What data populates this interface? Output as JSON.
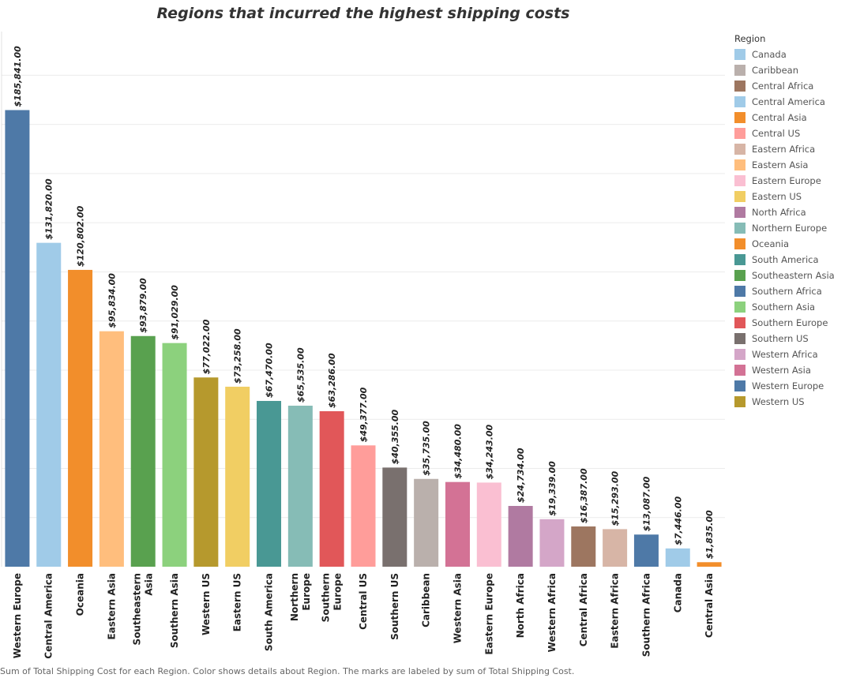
{
  "chart_data": {
    "type": "bar",
    "title": "Regions that incurred the highest shipping costs",
    "xlabel": "",
    "ylabel": "",
    "ylim": [
      0,
      200000
    ],
    "grid": true,
    "legend_position": "right",
    "legend_title": "Region",
    "categories": [
      "Western Europe",
      "Central America",
      "Oceania",
      "Eastern Asia",
      "Southeastern Asia",
      "Southern Asia",
      "Western US",
      "Eastern US",
      "South America",
      "Northern Europe",
      "Southern Europe",
      "Central US",
      "Southern US",
      "Caribbean",
      "Western Asia",
      "Eastern Europe",
      "North Africa",
      "Western Africa",
      "Central Africa",
      "Eastern Africa",
      "Southern Africa",
      "Canada",
      "Central Asia"
    ],
    "values": [
      185841,
      131820,
      120802,
      95834,
      93879,
      91029,
      77022,
      73258,
      67470,
      65535,
      63286,
      49377,
      40355,
      35735,
      34480,
      34243,
      24734,
      19339,
      16387,
      15293,
      13087,
      7446,
      1835
    ],
    "value_labels": [
      "$185,841.00",
      "$131,820.00",
      "$120,802.00",
      "$95,834.00",
      "$93,879.00",
      "$91,029.00",
      "$77,022.00",
      "$73,258.00",
      "$67,470.00",
      "$65,535.00",
      "$63,286.00",
      "$49,377.00",
      "$40,355.00",
      "$35,735.00",
      "$34,480.00",
      "$34,243.00",
      "$24,734.00",
      "$19,339.00",
      "$16,387.00",
      "$15,293.00",
      "$13,087.00",
      "$7,446.00",
      "$1,835.00"
    ],
    "category_labels": [
      [
        "Western Europe"
      ],
      [
        "Central America"
      ],
      [
        "Oceania"
      ],
      [
        "Eastern Asia"
      ],
      [
        "Southeastern",
        "Asia"
      ],
      [
        "Southern Asia"
      ],
      [
        "Western US"
      ],
      [
        "Eastern US"
      ],
      [
        "South America"
      ],
      [
        "Northern",
        "Europe"
      ],
      [
        "Southern",
        "Europe"
      ],
      [
        "Central US"
      ],
      [
        "Southern US"
      ],
      [
        "Caribbean"
      ],
      [
        "Western Asia"
      ],
      [
        "Eastern Europe"
      ],
      [
        "North Africa"
      ],
      [
        "Western Africa"
      ],
      [
        "Central Africa"
      ],
      [
        "Eastern Africa"
      ],
      [
        "Southern Africa"
      ],
      [
        "Canada"
      ],
      [
        "Central Asia"
      ]
    ],
    "colors": {
      "Canada": "#a0cbe8",
      "Caribbean": "#bab0ac",
      "Central Africa": "#9d7660",
      "Central America": "#a0cbe8",
      "Central Asia": "#f28e2b",
      "Central US": "#ff9d9a",
      "Eastern Africa": "#d7b5a6",
      "Eastern Asia": "#ffbe7d",
      "Eastern Europe": "#fabfd2",
      "Eastern US": "#f1ce63",
      "North Africa": "#b07aa1",
      "Northern Europe": "#86bcb6",
      "Oceania": "#f28e2b",
      "South America": "#499894",
      "Southeastern Asia": "#59a14f",
      "Southern Africa": "#4e79a7",
      "Southern Asia": "#8cd17d",
      "Southern Europe": "#e15759",
      "Southern US": "#79706e",
      "Western Africa": "#d4a6c8",
      "Western Asia": "#d37295",
      "Western Europe": "#4e79a7",
      "Western US": "#b6992d"
    },
    "legend": [
      "Canada",
      "Caribbean",
      "Central Africa",
      "Central America",
      "Central Asia",
      "Central US",
      "Eastern Africa",
      "Eastern Asia",
      "Eastern Europe",
      "Eastern US",
      "North Africa",
      "Northern Europe",
      "Oceania",
      "South America",
      "Southeastern Asia",
      "Southern Africa",
      "Southern Asia",
      "Southern Europe",
      "Southern US",
      "Western Africa",
      "Western Asia",
      "Western Europe",
      "Western US"
    ]
  },
  "footnote": "Sum of Total Shipping Cost for each Region.  Color shows details about Region.  The marks are labeled by sum of Total Shipping Cost."
}
